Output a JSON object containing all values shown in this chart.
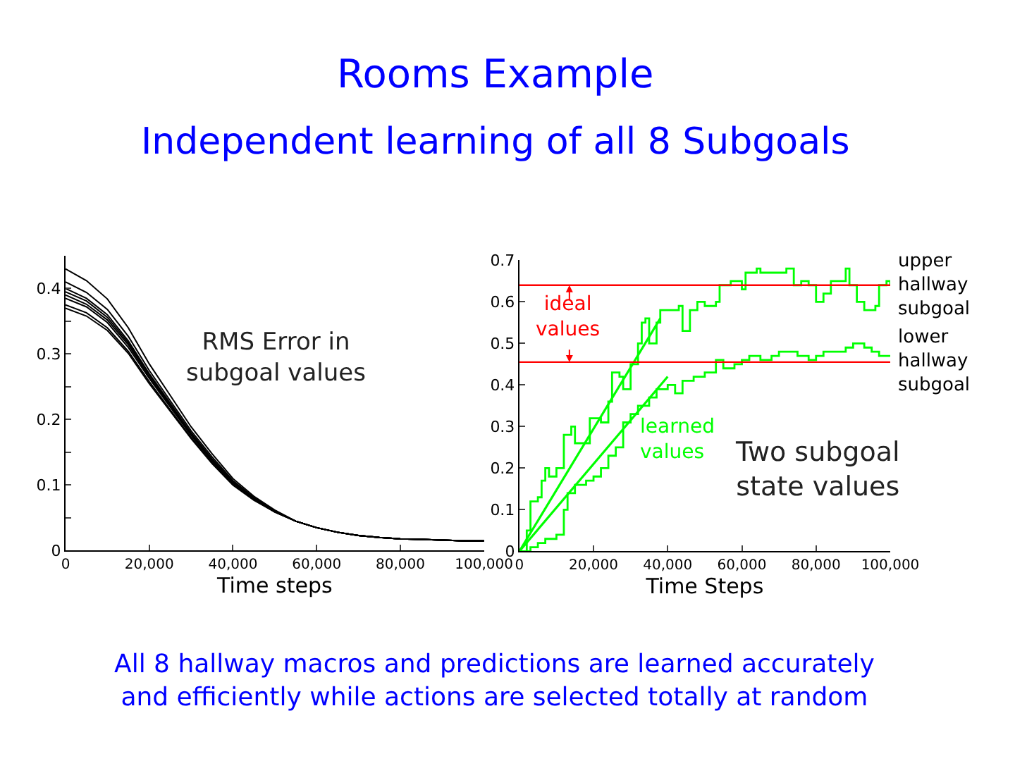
{
  "chart_data": [
    {
      "type": "line",
      "title": "Rooms Example",
      "subtitle": "Independent learning of all 8 Subgoals",
      "xlabel": "Time steps",
      "annotations": [
        "RMS Error in\nsubgoal values",
        "All 8 hallway macros and predictions are learned accurately\nand efficiently while actions are selected totally at random"
      ],
      "x": [
        0,
        5000,
        10000,
        15000,
        20000,
        25000,
        30000,
        35000,
        40000,
        45000,
        50000,
        55000,
        60000,
        65000,
        70000,
        75000,
        80000,
        85000,
        90000,
        95000,
        100000
      ],
      "series": [
        {
          "color": "#000000",
          "values": [
            0.43,
            0.412,
            0.384,
            0.34,
            0.285,
            0.237,
            0.189,
            0.148,
            0.11,
            0.083,
            0.062,
            0.045,
            0.035,
            0.028,
            0.023,
            0.02,
            0.018,
            0.017,
            0.016,
            0.015,
            0.015
          ]
        },
        {
          "color": "#000000",
          "values": [
            0.41,
            0.394,
            0.368,
            0.327,
            0.275,
            0.229,
            0.183,
            0.143,
            0.107,
            0.081,
            0.061,
            0.045,
            0.035,
            0.028,
            0.023,
            0.02,
            0.018,
            0.017,
            0.016,
            0.015,
            0.015
          ]
        },
        {
          "color": "#000000",
          "values": [
            0.4,
            0.385,
            0.36,
            0.32,
            0.27,
            0.225,
            0.18,
            0.14,
            0.105,
            0.08,
            0.06,
            0.045,
            0.035,
            0.028,
            0.023,
            0.02,
            0.018,
            0.017,
            0.016,
            0.015,
            0.015
          ]
        },
        {
          "color": "#000000",
          "values": [
            0.395,
            0.381,
            0.356,
            0.317,
            0.268,
            0.223,
            0.179,
            0.139,
            0.104,
            0.08,
            0.06,
            0.045,
            0.035,
            0.028,
            0.023,
            0.02,
            0.018,
            0.017,
            0.016,
            0.015,
            0.015
          ]
        },
        {
          "color": "#000000",
          "values": [
            0.39,
            0.376,
            0.352,
            0.314,
            0.265,
            0.221,
            0.177,
            0.138,
            0.104,
            0.079,
            0.06,
            0.045,
            0.035,
            0.028,
            0.023,
            0.02,
            0.018,
            0.017,
            0.016,
            0.015,
            0.015
          ]
        },
        {
          "color": "#000000",
          "values": [
            0.385,
            0.372,
            0.348,
            0.31,
            0.263,
            0.219,
            0.176,
            0.136,
            0.103,
            0.079,
            0.059,
            0.045,
            0.035,
            0.028,
            0.023,
            0.02,
            0.018,
            0.017,
            0.016,
            0.015,
            0.015
          ]
        },
        {
          "color": "#000000",
          "values": [
            0.375,
            0.363,
            0.34,
            0.304,
            0.258,
            0.215,
            0.173,
            0.134,
            0.101,
            0.078,
            0.059,
            0.045,
            0.035,
            0.028,
            0.023,
            0.02,
            0.018,
            0.017,
            0.016,
            0.015,
            0.015
          ]
        },
        {
          "color": "#000000",
          "values": [
            0.37,
            0.358,
            0.336,
            0.301,
            0.255,
            0.213,
            0.171,
            0.133,
            0.1,
            0.077,
            0.059,
            0.045,
            0.035,
            0.028,
            0.023,
            0.02,
            0.018,
            0.017,
            0.016,
            0.015,
            0.015
          ]
        }
      ],
      "xlim": [
        0,
        100000
      ],
      "ylim": [
        0,
        0.45
      ],
      "xticks": [
        0,
        {
          "value": 20000,
          "label": "20,000"
        },
        {
          "value": 40000,
          "label": "40,000"
        },
        {
          "value": 60000,
          "label": "60,000"
        },
        {
          "value": 80000,
          "label": "80,000"
        },
        {
          "value": 100000,
          "label": "100,000"
        }
      ],
      "yticks": [
        0,
        {
          "value": 0.05,
          "label": null
        },
        0.1,
        {
          "value": 0.15,
          "label": null
        },
        0.2,
        {
          "value": 0.25,
          "label": null
        },
        0.3,
        {
          "value": 0.35,
          "label": null
        },
        0.4
      ],
      "marker": "none",
      "line_style": "solid"
    },
    {
      "type": "step",
      "xlabel": "Time Steps",
      "annotations": [
        "ideal\nvalues",
        "learned\nvalues",
        "Two subgoal\nstate values"
      ],
      "series": [
        {
          "color": "#00ff00",
          "x": [
            0,
            2000,
            3000,
            5000,
            6000,
            7000,
            8000,
            10000,
            12000,
            14000,
            15000,
            18000,
            19000,
            22000,
            24000,
            25000,
            27000,
            28000,
            30000,
            32000,
            33000,
            34000,
            35000,
            37000,
            38000,
            41000,
            43000,
            44000,
            46000,
            48000,
            50000,
            53000,
            54000,
            57000,
            60000,
            61000,
            64000,
            65000,
            72000,
            74000,
            76000,
            78000,
            80000,
            82000,
            84000,
            87000,
            88000,
            89000,
            91000,
            93000,
            96000,
            97000,
            99000,
            100000
          ],
          "values": [
            0.0,
            0.05,
            0.12,
            0.13,
            0.17,
            0.2,
            0.18,
            0.2,
            0.28,
            0.3,
            0.26,
            0.26,
            0.32,
            0.31,
            0.36,
            0.43,
            0.42,
            0.39,
            0.45,
            0.5,
            0.55,
            0.56,
            0.5,
            0.55,
            0.58,
            0.58,
            0.59,
            0.53,
            0.58,
            0.6,
            0.59,
            0.6,
            0.64,
            0.65,
            0.63,
            0.67,
            0.68,
            0.67,
            0.68,
            0.64,
            0.65,
            0.64,
            0.6,
            0.62,
            0.65,
            0.65,
            0.68,
            0.64,
            0.6,
            0.58,
            0.59,
            0.64,
            0.65,
            0.64
          ]
        },
        {
          "color": "#00ff00",
          "x": [
            0,
            3000,
            5000,
            7000,
            10000,
            12000,
            13000,
            15000,
            18000,
            20000,
            22000,
            24000,
            26000,
            28000,
            30000,
            32000,
            35000,
            37000,
            40000,
            42000,
            44000,
            47000,
            50000,
            53000,
            55000,
            58000,
            60000,
            62000,
            65000,
            68000,
            70000,
            75000,
            78000,
            80000,
            82000,
            85000,
            88000,
            90000,
            93000,
            95000,
            97000,
            100000
          ],
          "values": [
            0.0,
            0.01,
            0.02,
            0.03,
            0.04,
            0.1,
            0.14,
            0.16,
            0.17,
            0.18,
            0.2,
            0.23,
            0.25,
            0.31,
            0.33,
            0.35,
            0.37,
            0.39,
            0.4,
            0.38,
            0.41,
            0.42,
            0.43,
            0.46,
            0.44,
            0.45,
            0.46,
            0.47,
            0.46,
            0.47,
            0.48,
            0.47,
            0.46,
            0.47,
            0.48,
            0.48,
            0.49,
            0.5,
            0.49,
            0.48,
            0.47,
            0.47
          ]
        },
        {
          "type": "line",
          "color": "#00ff00",
          "x": [
            0,
            38000
          ],
          "values": [
            0,
            0.56
          ]
        },
        {
          "type": "line",
          "color": "#00ff00",
          "x": [
            0,
            40000
          ],
          "values": [
            0,
            0.42
          ]
        }
      ],
      "ref_lines": [
        {
          "axis": "y",
          "value": 0.64,
          "label": "upper\nhallway\nsubgoal",
          "color": "#ff0000"
        },
        {
          "axis": "y",
          "value": 0.455,
          "label": "lower\nhallway\nsubgoal",
          "color": "#ff0000"
        }
      ],
      "xlim": [
        0,
        100000
      ],
      "ylim": [
        0,
        0.7
      ],
      "xticks": [
        0,
        {
          "value": 20000,
          "label": "20,000"
        },
        {
          "value": 40000,
          "label": "40,000"
        },
        {
          "value": 60000,
          "label": "60,000"
        },
        {
          "value": 80000,
          "label": "80,000"
        },
        {
          "value": 100000,
          "label": "100,000"
        }
      ],
      "yticks": [
        0,
        0.1,
        0.2,
        0.3,
        0.4,
        0.5,
        0.6,
        0.7
      ],
      "marker": "none",
      "line_style": "solid"
    }
  ]
}
